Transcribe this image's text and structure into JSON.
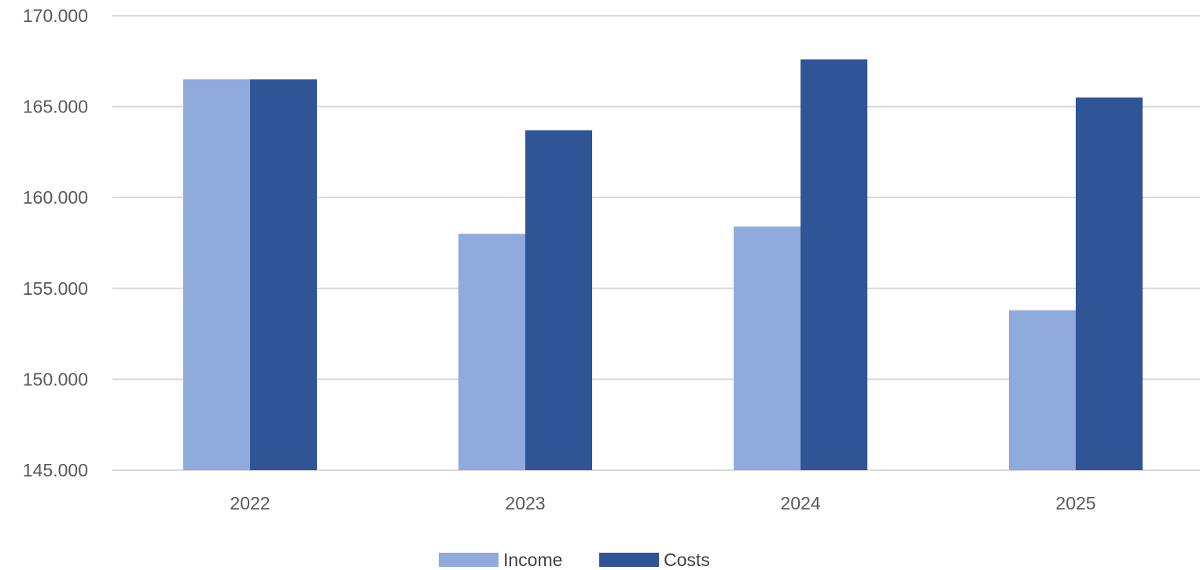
{
  "chart_data": {
    "type": "bar",
    "categories": [
      "2022",
      "2023",
      "2024",
      "2025"
    ],
    "series": [
      {
        "name": "Income",
        "values": [
          166500,
          158000,
          158400,
          153800
        ],
        "color": "#8FAADC"
      },
      {
        "name": "Costs",
        "values": [
          166500,
          163700,
          167600,
          165500
        ],
        "color": "#2F5597"
      }
    ],
    "ylim": [
      145000,
      170000
    ],
    "yticks": [
      145000,
      150000,
      155000,
      160000,
      165000,
      170000
    ],
    "ytick_labels": [
      "145.000",
      "150.000",
      "155.000",
      "160.000",
      "165.000",
      "170.000"
    ],
    "grid": true,
    "legend_position": "bottom",
    "title": "",
    "xlabel": "",
    "ylabel": ""
  }
}
